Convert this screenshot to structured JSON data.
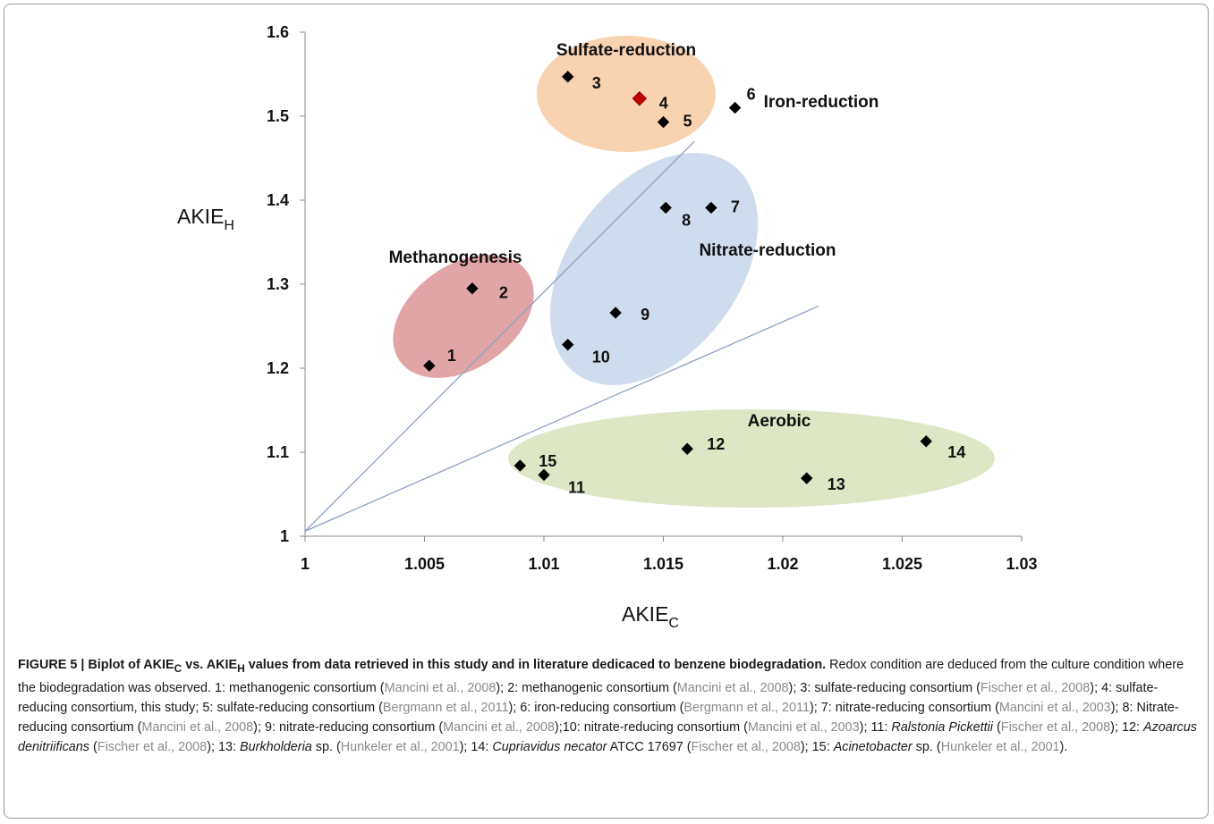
{
  "chart_data": {
    "type": "scatter",
    "xlabel": "AKIE",
    "xlabel_sub": "C",
    "ylabel": "AKIE",
    "ylabel_sub": "H",
    "xlim": [
      1,
      1.03
    ],
    "ylim": [
      1,
      1.6
    ],
    "xticks": [
      "1",
      "1.005",
      "1.01",
      "1.015",
      "1.02",
      "1.025",
      "1.03"
    ],
    "yticks": [
      "1",
      "1.1",
      "1.2",
      "1.3",
      "1.4",
      "1.5",
      "1.6"
    ],
    "grid": false,
    "points": [
      {
        "label": "1",
        "x": 1.0052,
        "y": 1.203
      },
      {
        "label": "2",
        "x": 1.007,
        "y": 1.295
      },
      {
        "label": "3",
        "x": 1.011,
        "y": 1.547
      },
      {
        "label": "4",
        "x": 1.014,
        "y": 1.521,
        "color": "#c00000"
      },
      {
        "label": "5",
        "x": 1.015,
        "y": 1.493
      },
      {
        "label": "6",
        "x": 1.018,
        "y": 1.51
      },
      {
        "label": "7",
        "x": 1.017,
        "y": 1.391
      },
      {
        "label": "8",
        "x": 1.0151,
        "y": 1.391
      },
      {
        "label": "9",
        "x": 1.013,
        "y": 1.266
      },
      {
        "label": "10",
        "x": 1.011,
        "y": 1.228
      },
      {
        "label": "11",
        "x": 1.01,
        "y": 1.073
      },
      {
        "label": "12",
        "x": 1.016,
        "y": 1.104
      },
      {
        "label": "13",
        "x": 1.021,
        "y": 1.069
      },
      {
        "label": "14",
        "x": 1.026,
        "y": 1.113
      },
      {
        "label": "15",
        "x": 1.009,
        "y": 1.084
      }
    ],
    "regions": [
      {
        "name": "Sulfate-reduction",
        "color": "#f9d3b0"
      },
      {
        "name": "Iron-reduction",
        "color": "#ffffff"
      },
      {
        "name": "Nitrate-reduction",
        "color": "#cfdced"
      },
      {
        "name": "Methanogenesis",
        "color": "#e1a5a8"
      },
      {
        "name": "Aerobic",
        "color": "#dde7c6"
      }
    ],
    "reference_lines": [
      {
        "from": [
          1,
          1.006
        ],
        "to": [
          1.0163,
          1.47
        ]
      },
      {
        "from": [
          1,
          1.006
        ],
        "to": [
          1.0215,
          1.274
        ]
      }
    ],
    "marker_color": "#000000",
    "line_color": "#8ea0c4"
  },
  "caption": {
    "bold": "FIGURE 5 | Biplot of AKIE",
    "bold_sub1": "C",
    "bold_mid": " vs. AKIE",
    "bold_sub2": "H",
    "bold_end": " values from data retrieved in this study and in literature dedicaced to benzene biodegradation.",
    "segments": [
      {
        "t": " Redox condition are deduced from the culture condition where the biodegradation was observed. 1: methanogenic consortium ("
      },
      {
        "t": "Mancini et al., 2008",
        "c": 1
      },
      {
        "t": "); 2: methanogenic consortium ("
      },
      {
        "t": "Mancini et al., 2008",
        "c": 1
      },
      {
        "t": "); 3: sulfate-reducing consortium ("
      },
      {
        "t": "Fischer et al., 2008",
        "c": 1
      },
      {
        "t": "); 4: sulfate-reducing consortium, this study; 5: sulfate-reducing consortium ("
      },
      {
        "t": "Bergmann et al., 2011",
        "c": 1
      },
      {
        "t": "); 6: iron-reducing consortium ("
      },
      {
        "t": "Bergmann et al., 2011",
        "c": 1
      },
      {
        "t": "); 7: nitrate-reducing consortium ("
      },
      {
        "t": "Mancini et al., 2003",
        "c": 1
      },
      {
        "t": "); 8: Nitrate-reducing consortium ("
      },
      {
        "t": "Mancini et al., 2008",
        "c": 1
      },
      {
        "t": "); 9: nitrate-reducing consortium ("
      },
      {
        "t": "Mancini et al., 2008",
        "c": 1
      },
      {
        "t": ");10: nitrate-reducing consortium ("
      },
      {
        "t": "Mancini et al., 2003",
        "c": 1
      },
      {
        "t": "); 11: "
      },
      {
        "t": "Ralstonia Pickettii",
        "i": 1
      },
      {
        "t": " ("
      },
      {
        "t": "Fischer et al., 2008",
        "c": 1
      },
      {
        "t": "); 12: "
      },
      {
        "t": "Azoarcus denitriificans",
        "i": 1
      },
      {
        "t": " ("
      },
      {
        "t": "Fischer et al., 2008",
        "c": 1
      },
      {
        "t": "); 13: "
      },
      {
        "t": "Burkholderia",
        "i": 1
      },
      {
        "t": " sp. ("
      },
      {
        "t": "Hunkeler et al., 2001",
        "c": 1
      },
      {
        "t": "); 14: "
      },
      {
        "t": "Cupriavidus necator",
        "i": 1
      },
      {
        "t": " ATCC 17697 ("
      },
      {
        "t": "Fischer et al., 2008",
        "c": 1
      },
      {
        "t": "); 15: "
      },
      {
        "t": "Acinetobacter",
        "i": 1
      },
      {
        "t": " sp. ("
      },
      {
        "t": "Hunkeler et al., 2001",
        "c": 1
      },
      {
        "t": ")."
      }
    ]
  }
}
